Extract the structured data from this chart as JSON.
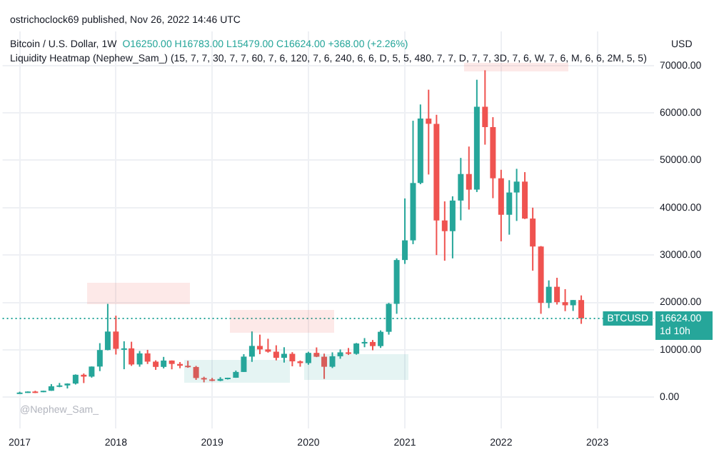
{
  "chart_data": {
    "type": "candlestick",
    "title": "Bitcoin / U.S. Dollar, 1W",
    "subtitle": "O16250.00 H16783.00 L15479.00 C16624.00 +368.00 (+2.26%)",
    "ylabel": "USD",
    "annotations": [
      "ostrichoclock69 published, Nov 26, 2022 14:46 UTC",
      "Liquidity Heatmap (Nephew_Sam_) (15, 7, 7, 30, 7, 7, 60, 7, 6, 120, 7, 6, 240, 6, 6, D, 5, 5, 480, 7, 7, D, 7, 7, 3D, 7, 6, W, 7, 6, M, 6, 6, 2M, 5, 5)",
      "@Nephew_Sam_",
      "16624.00",
      "1d 10h"
    ],
    "x": [
      "2017-01",
      "2017-02",
      "2017-03",
      "2017-04",
      "2017-05",
      "2017-06",
      "2017-07",
      "2017-08",
      "2017-09",
      "2017-10",
      "2017-11",
      "2017-12",
      "2018-01",
      "2018-02",
      "2018-03",
      "2018-04",
      "2018-05",
      "2018-06",
      "2018-07",
      "2018-08",
      "2018-09",
      "2018-10",
      "2018-11",
      "2018-12",
      "2019-01",
      "2019-02",
      "2019-03",
      "2019-04",
      "2019-05",
      "2019-06",
      "2019-07",
      "2019-08",
      "2019-09",
      "2019-10",
      "2019-11",
      "2019-12",
      "2020-01",
      "2020-02",
      "2020-03",
      "2020-04",
      "2020-05",
      "2020-06",
      "2020-07",
      "2020-08",
      "2020-09",
      "2020-10",
      "2020-11",
      "2020-12",
      "2021-01",
      "2021-02",
      "2021-03",
      "2021-04",
      "2021-05",
      "2021-06",
      "2021-07",
      "2021-08",
      "2021-09",
      "2021-10",
      "2021-11",
      "2021-12",
      "2022-01",
      "2022-02",
      "2022-03",
      "2022-04",
      "2022-05",
      "2022-06",
      "2022-07",
      "2022-08",
      "2022-09",
      "2022-10",
      "2022-11"
    ],
    "ohlc": [
      [
        960,
        1150,
        750,
        970
      ],
      [
        970,
        1200,
        920,
        1190
      ],
      [
        1190,
        1350,
        890,
        1080
      ],
      [
        1080,
        1350,
        1060,
        1350
      ],
      [
        1350,
        2760,
        1350,
        2300
      ],
      [
        2300,
        3000,
        2100,
        2480
      ],
      [
        2480,
        2920,
        1840,
        2870
      ],
      [
        2870,
        4800,
        2670,
        4730
      ],
      [
        4730,
        5000,
        2980,
        4340
      ],
      [
        4340,
        6470,
        4120,
        6460
      ],
      [
        6460,
        11400,
        5500,
        9950
      ],
      [
        9950,
        19700,
        9900,
        13850
      ],
      [
        13850,
        17200,
        9000,
        10200
      ],
      [
        10200,
        11800,
        5900,
        10300
      ],
      [
        10300,
        11700,
        6600,
        6900
      ],
      [
        6900,
        9750,
        6430,
        9240
      ],
      [
        9240,
        9990,
        7000,
        7500
      ],
      [
        7500,
        7780,
        5760,
        6390
      ],
      [
        6390,
        8500,
        6070,
        7730
      ],
      [
        7730,
        7760,
        5880,
        7010
      ],
      [
        7010,
        7410,
        6100,
        6630
      ],
      [
        6630,
        7680,
        6200,
        6370
      ],
      [
        6370,
        6600,
        3650,
        4040
      ],
      [
        4040,
        4310,
        3130,
        3740
      ],
      [
        3740,
        4070,
        3400,
        3460
      ],
      [
        3460,
        4210,
        3390,
        3850
      ],
      [
        3850,
        4110,
        3730,
        4100
      ],
      [
        4100,
        5620,
        4080,
        5320
      ],
      [
        5320,
        9080,
        5320,
        8560
      ],
      [
        8560,
        13880,
        7450,
        10820
      ],
      [
        10820,
        13200,
        9070,
        10080
      ],
      [
        10080,
        12330,
        9400,
        9600
      ],
      [
        9600,
        10950,
        7760,
        8300
      ],
      [
        8300,
        10540,
        7300,
        9150
      ],
      [
        9150,
        9500,
        6520,
        7560
      ],
      [
        7560,
        7750,
        6430,
        7190
      ],
      [
        7190,
        9580,
        6850,
        9350
      ],
      [
        9350,
        10500,
        8450,
        8540
      ],
      [
        8540,
        9190,
        3850,
        6420
      ],
      [
        6420,
        9460,
        6150,
        8630
      ],
      [
        8630,
        10070,
        8110,
        9460
      ],
      [
        9460,
        10380,
        8910,
        9140
      ],
      [
        9140,
        11440,
        8970,
        11330
      ],
      [
        11330,
        12470,
        10540,
        11650
      ],
      [
        11650,
        12070,
        9900,
        10780
      ],
      [
        10780,
        14100,
        10400,
        13800
      ],
      [
        13800,
        19900,
        13200,
        19700
      ],
      [
        19700,
        29300,
        17600,
        28950
      ],
      [
        28950,
        41950,
        28130,
        33100
      ],
      [
        33100,
        58350,
        32300,
        45200
      ],
      [
        45200,
        61780,
        44950,
        58800
      ],
      [
        58800,
        64900,
        47000,
        57700
      ],
      [
        57700,
        59600,
        30000,
        37300
      ],
      [
        37300,
        41330,
        28800,
        35040
      ],
      [
        35040,
        42400,
        29300,
        41500
      ],
      [
        41500,
        50500,
        37330,
        47100
      ],
      [
        47100,
        52900,
        39600,
        43800
      ],
      [
        43800,
        67000,
        43300,
        61300
      ],
      [
        61300,
        69000,
        53300,
        57000
      ],
      [
        57000,
        59100,
        42000,
        46200
      ],
      [
        46200,
        47990,
        32900,
        38500
      ],
      [
        38500,
        45800,
        34300,
        43200
      ],
      [
        43200,
        48200,
        37200,
        45500
      ],
      [
        45500,
        47500,
        37600,
        37700
      ],
      [
        37700,
        40000,
        26700,
        31800
      ],
      [
        31800,
        31900,
        17600,
        19900
      ],
      [
        19900,
        24650,
        18800,
        23300
      ],
      [
        23300,
        25200,
        19550,
        20050
      ],
      [
        20050,
        22800,
        18150,
        19400
      ],
      [
        19400,
        20500,
        18200,
        20500
      ],
      [
        20500,
        21480,
        15480,
        16624
      ]
    ],
    "colors": [
      "#26a69a",
      "#26a69a",
      "#ef5350",
      "#26a69a",
      "#26a69a",
      "#26a69a",
      "#26a69a",
      "#26a69a",
      "#ef5350",
      "#26a69a",
      "#26a69a",
      "#26a69a",
      "#ef5350",
      "#26a69a",
      "#ef5350",
      "#26a69a",
      "#ef5350",
      "#ef5350",
      "#26a69a",
      "#ef5350",
      "#ef5350",
      "#ef5350",
      "#ef5350",
      "#ef5350",
      "#ef5350",
      "#26a69a",
      "#26a69a",
      "#26a69a",
      "#26a69a",
      "#26a69a",
      "#ef5350",
      "#ef5350",
      "#ef5350",
      "#26a69a",
      "#ef5350",
      "#ef5350",
      "#26a69a",
      "#ef5350",
      "#ef5350",
      "#26a69a",
      "#26a69a",
      "#ef5350",
      "#26a69a",
      "#26a69a",
      "#ef5350",
      "#26a69a",
      "#26a69a",
      "#26a69a",
      "#26a69a",
      "#26a69a",
      "#26a69a",
      "#ef5350",
      "#ef5350",
      "#ef5350",
      "#26a69a",
      "#26a69a",
      "#ef5350",
      "#26a69a",
      "#ef5350",
      "#ef5350",
      "#ef5350",
      "#26a69a",
      "#26a69a",
      "#ef5350",
      "#ef5350",
      "#ef5350",
      "#26a69a",
      "#ef5350",
      "#ef5350",
      "#26a69a",
      "#ef5350"
    ],
    "xlim": [
      "2016-10-28",
      "2023-08-04"
    ],
    "xticks": [
      {
        "value": "2017-01-01",
        "label": "2017"
      },
      {
        "value": "2018-01-01",
        "label": "2018"
      },
      {
        "value": "2019-01-01",
        "label": "2019"
      },
      {
        "value": "2020-01-01",
        "label": "2020"
      },
      {
        "value": "2021-01-01",
        "label": "2021"
      },
      {
        "value": "2022-01-01",
        "label": "2022"
      },
      {
        "value": "2023-01-01",
        "label": "2023"
      }
    ],
    "ylim": [
      -6600,
      77200
    ],
    "yticks": [
      {
        "value": 0,
        "label": "0.00"
      },
      {
        "value": 10000,
        "label": "10000.00"
      },
      {
        "value": 20000,
        "label": "20000.00"
      },
      {
        "value": 30000,
        "label": "30000.00"
      },
      {
        "value": 40000,
        "label": "40000.00"
      },
      {
        "value": 50000,
        "label": "50000.00"
      },
      {
        "value": 60000,
        "label": "60000.00"
      },
      {
        "value": 70000,
        "label": "70000.00"
      }
    ],
    "ref_lines": [
      {
        "axis": "y",
        "value": 16624,
        "label": "BTCUSD",
        "color": "#26a69a",
        "line_style": "dotted"
      }
    ],
    "grid": true,
    "legend": false
  }
}
